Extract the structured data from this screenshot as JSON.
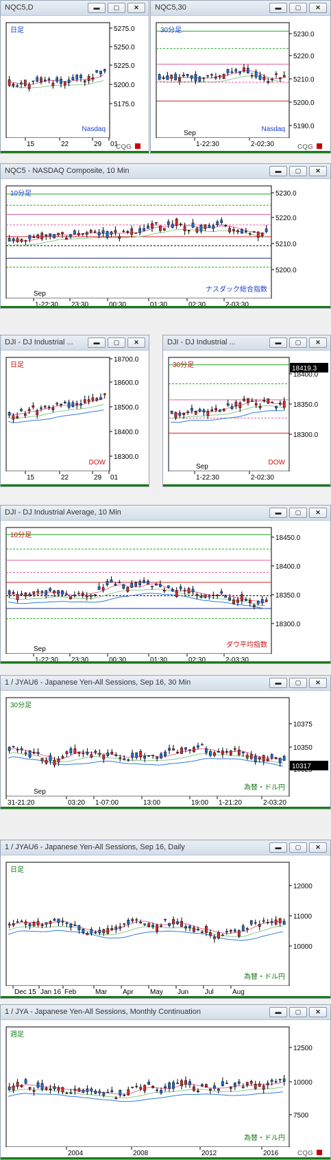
{
  "colors": {
    "up": "#1f6fd0",
    "down": "#d22e2e",
    "text_blue": "#1a3fd1",
    "text_red": "#d01010",
    "text_green": "#127a12"
  },
  "icons": {
    "minimize": "minimize-icon",
    "restore": "restore-icon",
    "close": "close-icon"
  },
  "buttons": {
    "min": "▬",
    "restore": "▢",
    "close": "✕"
  },
  "logo": "CQG",
  "windows": [
    {
      "id": "w1",
      "title": "NQC5,D",
      "label": "日足",
      "label_color": "#1a3fd1",
      "name": "Nasdaq",
      "name_color": "#1a3fd1",
      "yticks": [
        "5275.0",
        "5250.0",
        "5225.0",
        "5200.0",
        "5175.0"
      ],
      "xticks": [
        "15",
        "22",
        "29",
        "01"
      ]
    },
    {
      "id": "w2",
      "title": "NQC5,30",
      "label": "30分足",
      "label_color": "#1a3fd1",
      "name": "Nasdaq",
      "name_color": "#1a3fd1",
      "yticks": [
        "5230.0",
        "5220.0",
        "5210.0",
        "5200.0",
        "5190.0"
      ],
      "xticks": [
        "1-22:30",
        "2-02:30"
      ],
      "marker": "Sep"
    },
    {
      "id": "w3",
      "title": "NQC5 - NASDAQ Composite, 10 Min",
      "label": "10分足",
      "label_color": "#1a3fd1",
      "name": "ナスダック総合指数",
      "name_color": "#1a3fd1",
      "yticks": [
        "5230.0",
        "5220.0",
        "5210.0",
        "5200.0"
      ],
      "xticks": [
        "1-22:30",
        "23:30",
        "00:30",
        "01:30",
        "02:30",
        "2-03:30"
      ],
      "marker": "Sep"
    },
    {
      "id": "w4",
      "title": "DJI - DJ Industrial ...",
      "label": "日足",
      "label_color": "#d01010",
      "name": "DOW",
      "name_color": "#d01010",
      "yticks": [
        "18700.0",
        "18600.0",
        "18500.0",
        "18400.0",
        "18300.0"
      ],
      "xticks": [
        "15",
        "22",
        "29",
        "01"
      ]
    },
    {
      "id": "w5",
      "title": "DJI - DJ Industrial ...",
      "label": "30分足",
      "label_color": "#d01010",
      "name": "DOW",
      "name_color": "#d01010",
      "yticks": [
        "18400.0",
        "18350.0",
        "18300.0"
      ],
      "xticks": [
        "1-22:30",
        "2-02:30"
      ],
      "marker": "Sep",
      "last_price": "18419.3"
    },
    {
      "id": "w6",
      "title": "DJI - DJ Industrial Average, 10 Min",
      "label": "10分足",
      "label_color": "#d01010",
      "name": "ダウ平均指数",
      "name_color": "#d01010",
      "yticks": [
        "18450.0",
        "18400.0",
        "18350.0",
        "18300.0"
      ],
      "xticks": [
        "1-22:30",
        "23:30",
        "00:30",
        "01:30",
        "02:30",
        "2-03:30"
      ],
      "marker": "Sep"
    },
    {
      "id": "w7",
      "title": "1 / JYAU6 - Japanese Yen-All Sessions, Sep 16, 30 Min",
      "label": "30分足",
      "label_color": "#127a12",
      "name": "為替・ドル円",
      "name_color": "#127a12",
      "yticks": [
        "10375",
        "10350",
        "10325"
      ],
      "xticks": [
        "31-21:20",
        "03:20",
        "1-07:00",
        "13:00",
        "19:00",
        "1-21:20",
        "2-03:20"
      ],
      "marker": "Sep",
      "last_price": "10317"
    },
    {
      "id": "w8",
      "title": "1 / JYAU6 - Japanese Yen-All Sessions, Sep 16, Daily",
      "label": "日足",
      "label_color": "#127a12",
      "name": "為替・ドル円",
      "name_color": "#127a12",
      "yticks": [
        "12000",
        "11000",
        "10000"
      ],
      "xticks": [
        "Dec 15",
        "Jan 16",
        "Feb",
        "Mar",
        "Apr",
        "May",
        "Jun",
        "Jul",
        "Aug"
      ]
    },
    {
      "id": "w9",
      "title": "1 / JYA - Japanese Yen-All Sessions, Monthly Continuation",
      "label": "週足",
      "label_color": "#127a12",
      "name": "為替・ドル円",
      "name_color": "#127a12",
      "yticks": [
        "12500",
        "10000",
        "7500"
      ],
      "xticks": [
        "2004",
        "2008",
        "2012",
        "2016"
      ]
    }
  ]
}
